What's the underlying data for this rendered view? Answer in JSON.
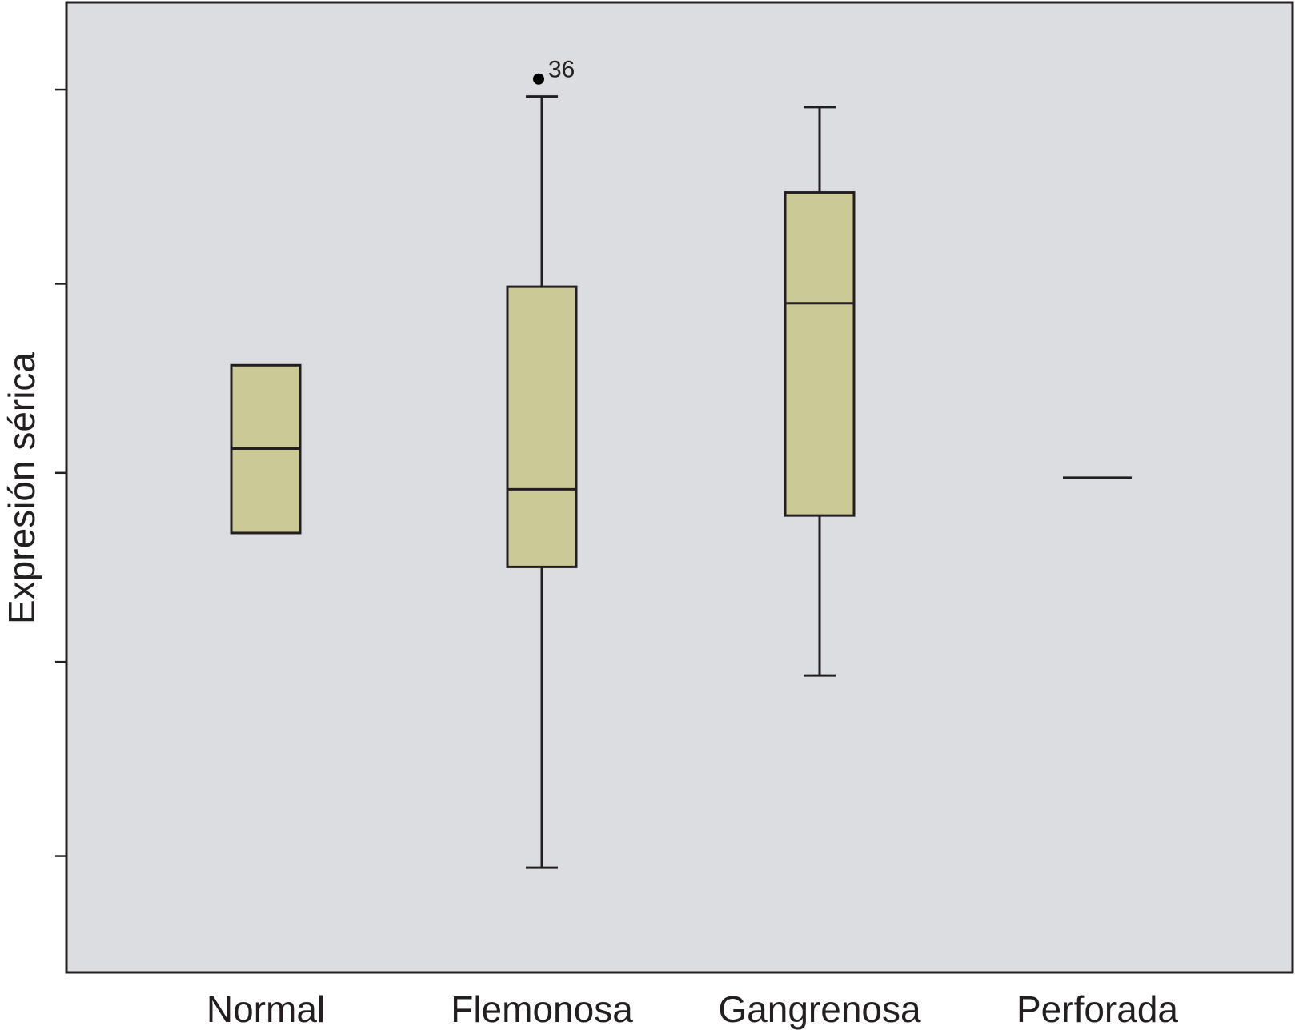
{
  "chart_data": {
    "type": "boxplot",
    "title": "",
    "xlabel": "",
    "ylabel": "Expresión sérica",
    "categories": [
      "Normal",
      "Flemonosa",
      "Gangrenosa",
      "Perforada"
    ],
    "ylim": [
      0,
      100
    ],
    "y_tick_values": [
      12,
      32,
      51.5,
      71,
      91
    ],
    "tick_labels_shown": false,
    "grid": false,
    "legend": "none",
    "box_fill": "#cbc996",
    "plot_background": "#dcdde0",
    "line_color": "#231f20",
    "boxes": [
      {
        "category": "Normal",
        "whisker_low": null,
        "q1": 45.3,
        "median": 54.0,
        "q3": 62.6,
        "whisker_high": null
      },
      {
        "category": "Flemonosa",
        "whisker_low": 10.8,
        "q1": 41.8,
        "median": 49.8,
        "q3": 70.7,
        "whisker_high": 90.3
      },
      {
        "category": "Gangrenosa",
        "whisker_low": 30.6,
        "q1": 47.1,
        "median": 69.0,
        "q3": 80.4,
        "whisker_high": 89.2
      },
      {
        "category": "Perforada",
        "whisker_low": null,
        "q1": 51.0,
        "median": 51.0,
        "q3": 51.0,
        "whisker_high": null
      }
    ],
    "outliers": [
      {
        "category": "Flemonosa",
        "value": 92.1,
        "label": "36"
      }
    ]
  }
}
